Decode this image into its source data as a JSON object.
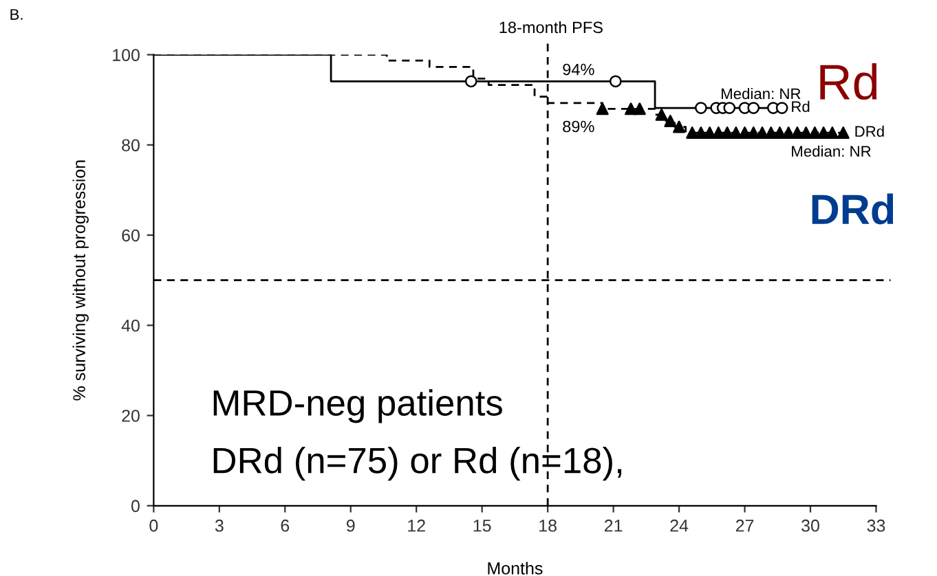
{
  "chart_data": {
    "type": "step",
    "xlabel": "Months",
    "ylabel": "% surviving without progression",
    "xlim": [
      0,
      33
    ],
    "xticks": [
      0,
      3,
      6,
      9,
      12,
      15,
      18,
      21,
      24,
      27,
      30,
      33
    ],
    "ylim": [
      0,
      100
    ],
    "yticks": [
      0,
      20,
      40,
      60,
      80,
      100
    ],
    "grid": false,
    "series": [
      {
        "name": "Rd",
        "color": "#000000",
        "line_style": "solid",
        "x": [
          0,
          8.1,
          22.9,
          28.7
        ],
        "values": [
          100,
          94.1,
          88.2,
          88.2
        ]
      },
      {
        "name": "DRd",
        "color": "#000000",
        "line_style": "dashed",
        "x": [
          0,
          8.2,
          10.65,
          12.6,
          14.6,
          15.3,
          17.4,
          18.0,
          20.5,
          22.9,
          23.4,
          23.8,
          24.3,
          31.6
        ],
        "values": [
          100,
          100,
          98.7,
          97.3,
          94.7,
          93.3,
          90.7,
          89.3,
          88,
          86.7,
          85.3,
          84,
          82.7,
          82.7
        ]
      },
      {
        "type": "scatter",
        "color": "#000000",
        "marker": "circle",
        "x": [
          14.5,
          21.1,
          25.0,
          25.7,
          26.0,
          26.3,
          27.0,
          27.4,
          28.3,
          28.7
        ],
        "values": [
          94.1,
          94.1,
          88.2,
          88.2,
          88.2,
          88.2,
          88.2,
          88.2,
          88.2,
          88.2
        ]
      },
      {
        "type": "scatter",
        "color": "#000000",
        "marker": "triangle",
        "x": [
          20.5,
          21.8,
          22.2,
          23.2,
          23.6,
          24.0,
          24.6,
          25.0,
          25.4,
          25.8,
          26.2,
          26.6,
          27.0,
          27.4,
          27.8,
          28.2,
          28.6,
          29.0,
          29.4,
          29.8,
          30.2,
          30.6,
          31.0,
          31.5
        ],
        "values": [
          88,
          88,
          88,
          86.7,
          85.3,
          84,
          82.7,
          82.7,
          82.7,
          82.7,
          82.7,
          82.7,
          82.7,
          82.7,
          82.7,
          82.7,
          82.7,
          82.7,
          82.7,
          82.7,
          82.7,
          82.7,
          82.7,
          82.7
        ]
      }
    ],
    "ref_lines": [
      {
        "axis": "x",
        "value": 18,
        "line_style": "dashed",
        "color": "#000000"
      },
      {
        "axis": "y",
        "value": 50,
        "line_style": "dashed",
        "color": "#000000"
      }
    ],
    "annotations": [
      "B.",
      "18-month PFS",
      "94%",
      "89%",
      "Median: NR",
      "Median: NR",
      "Rd",
      "DRd",
      "MRD-neg patients",
      "DRd (n=75) or Rd (n=18),"
    ]
  }
}
